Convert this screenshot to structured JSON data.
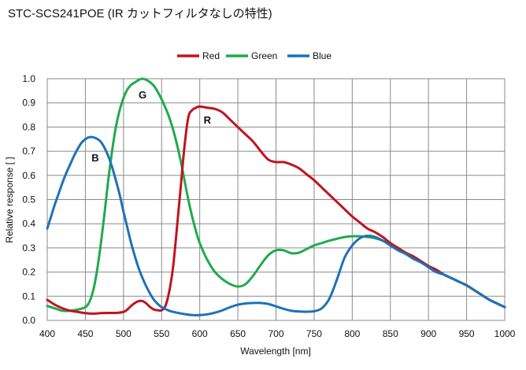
{
  "chart_data": {
    "type": "line",
    "title": "STC-SCS241POE (IR カットフィルタなしの特性)",
    "xlabel": "Wavelength [nm]",
    "ylabel": "Relative response [ ]",
    "xlim": [
      400,
      1000
    ],
    "ylim": [
      0,
      1.0
    ],
    "xticks": [
      "400",
      "450",
      "500",
      "550",
      "600",
      "650",
      "700",
      "750",
      "800",
      "850",
      "900",
      "950",
      "1000"
    ],
    "yticks": [
      "0.0",
      "0.1",
      "0.2",
      "0.3",
      "0.4",
      "0.5",
      "0.6",
      "0.7",
      "0.8",
      "0.9",
      "1.0"
    ],
    "grid": true,
    "legend_position": "top-center",
    "series": [
      {
        "name": "Red",
        "color": "#c0141e",
        "x": [
          400,
          410,
          420,
          430,
          440,
          450,
          460,
          470,
          480,
          490,
          500,
          505,
          510,
          515,
          520,
          525,
          530,
          535,
          540,
          545,
          550,
          555,
          560,
          565,
          570,
          575,
          580,
          585,
          590,
          595,
          600,
          610,
          620,
          630,
          640,
          650,
          660,
          670,
          680,
          690,
          700,
          710,
          720,
          730,
          740,
          750,
          760,
          770,
          780,
          790,
          800,
          810,
          820,
          830,
          840,
          850,
          860,
          870,
          880,
          890,
          900,
          910,
          920,
          930,
          940,
          950,
          960,
          970,
          980,
          990,
          1000
        ],
        "y": [
          0.085,
          0.065,
          0.05,
          0.04,
          0.035,
          0.03,
          0.028,
          0.03,
          0.031,
          0.031,
          0.035,
          0.045,
          0.06,
          0.072,
          0.08,
          0.08,
          0.07,
          0.055,
          0.045,
          0.042,
          0.042,
          0.06,
          0.12,
          0.22,
          0.38,
          0.55,
          0.72,
          0.84,
          0.87,
          0.88,
          0.885,
          0.88,
          0.875,
          0.86,
          0.83,
          0.8,
          0.77,
          0.74,
          0.7,
          0.665,
          0.655,
          0.655,
          0.645,
          0.63,
          0.605,
          0.58,
          0.55,
          0.52,
          0.49,
          0.46,
          0.43,
          0.405,
          0.38,
          0.365,
          0.345,
          0.32,
          0.3,
          0.28,
          0.265,
          0.245,
          0.225,
          0.21,
          0.19,
          0.175,
          0.16,
          0.145,
          0.125,
          0.105,
          0.085,
          0.07,
          0.055
        ]
      },
      {
        "name": "Green",
        "color": "#22aa4c",
        "x": [
          400,
          410,
          420,
          430,
          440,
          450,
          455,
          460,
          465,
          470,
          475,
          480,
          485,
          490,
          495,
          500,
          505,
          510,
          515,
          520,
          525,
          530,
          535,
          540,
          545,
          550,
          555,
          560,
          565,
          570,
          575,
          580,
          585,
          590,
          595,
          600,
          610,
          620,
          630,
          640,
          650,
          660,
          670,
          680,
          690,
          700,
          710,
          720,
          730,
          740,
          750,
          760,
          770,
          780,
          790,
          800,
          810,
          820,
          830,
          840,
          850,
          860,
          870,
          880,
          890,
          900,
          910,
          920,
          930,
          940,
          950,
          960,
          970,
          980,
          990,
          1000
        ],
        "y": [
          0.06,
          0.05,
          0.04,
          0.04,
          0.045,
          0.055,
          0.075,
          0.12,
          0.2,
          0.31,
          0.44,
          0.58,
          0.7,
          0.8,
          0.87,
          0.92,
          0.955,
          0.975,
          0.985,
          0.995,
          1.0,
          0.995,
          0.985,
          0.97,
          0.945,
          0.915,
          0.88,
          0.84,
          0.79,
          0.73,
          0.66,
          0.58,
          0.5,
          0.43,
          0.37,
          0.32,
          0.25,
          0.2,
          0.17,
          0.15,
          0.14,
          0.15,
          0.185,
          0.23,
          0.27,
          0.29,
          0.29,
          0.278,
          0.28,
          0.295,
          0.31,
          0.32,
          0.33,
          0.338,
          0.345,
          0.348,
          0.348,
          0.345,
          0.34,
          0.33,
          0.315,
          0.3,
          0.28,
          0.265,
          0.245,
          0.225,
          0.21,
          0.19,
          0.175,
          0.16,
          0.145,
          0.125,
          0.105,
          0.085,
          0.07,
          0.055
        ]
      },
      {
        "name": "Blue",
        "color": "#1e72b8",
        "x": [
          400,
          405,
          410,
          415,
          420,
          425,
          430,
          435,
          440,
          445,
          450,
          455,
          460,
          465,
          470,
          475,
          480,
          485,
          490,
          495,
          500,
          505,
          510,
          515,
          520,
          525,
          530,
          535,
          540,
          545,
          550,
          560,
          570,
          580,
          590,
          600,
          610,
          620,
          630,
          640,
          650,
          660,
          670,
          680,
          690,
          700,
          710,
          720,
          730,
          740,
          750,
          760,
          770,
          780,
          790,
          800,
          810,
          820,
          830,
          840,
          850,
          860,
          870,
          880,
          890,
          900,
          910,
          920,
          930,
          940,
          950,
          960,
          970,
          980,
          990,
          1000
        ],
        "y": [
          0.38,
          0.43,
          0.48,
          0.525,
          0.57,
          0.61,
          0.645,
          0.68,
          0.71,
          0.735,
          0.75,
          0.758,
          0.758,
          0.752,
          0.74,
          0.715,
          0.68,
          0.635,
          0.58,
          0.52,
          0.45,
          0.385,
          0.32,
          0.265,
          0.215,
          0.175,
          0.14,
          0.11,
          0.085,
          0.068,
          0.055,
          0.04,
          0.032,
          0.026,
          0.022,
          0.022,
          0.025,
          0.032,
          0.042,
          0.055,
          0.065,
          0.07,
          0.072,
          0.072,
          0.068,
          0.058,
          0.048,
          0.04,
          0.037,
          0.036,
          0.038,
          0.05,
          0.09,
          0.17,
          0.26,
          0.31,
          0.34,
          0.35,
          0.345,
          0.33,
          0.31,
          0.29,
          0.275,
          0.255,
          0.24,
          0.22,
          0.2,
          0.19,
          0.175,
          0.16,
          0.145,
          0.125,
          0.105,
          0.085,
          0.07,
          0.055
        ]
      }
    ],
    "annotations": [
      {
        "text": "G",
        "x": 525,
        "y": 0.935
      },
      {
        "text": "R",
        "x": 610,
        "y": 0.83
      },
      {
        "text": "B",
        "x": 463,
        "y": 0.675
      }
    ]
  }
}
